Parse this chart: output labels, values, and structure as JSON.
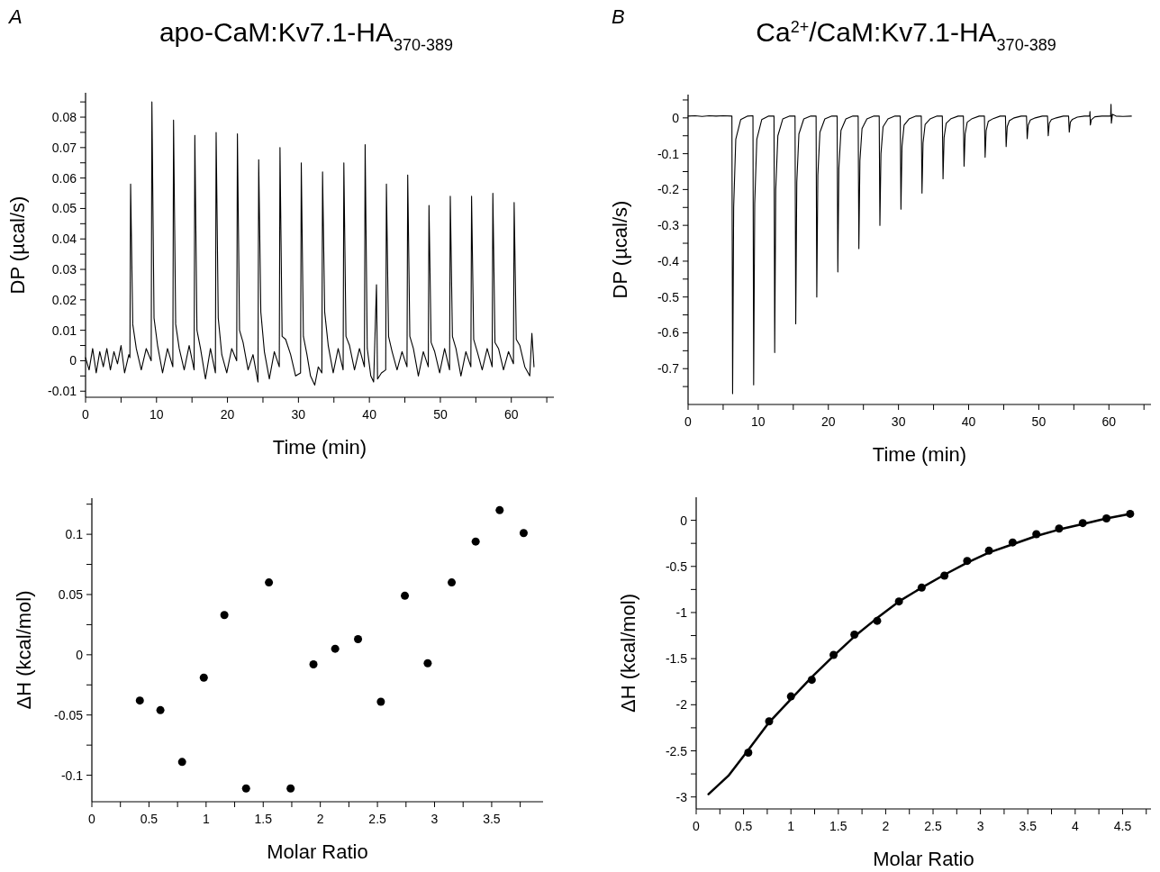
{
  "chart_data": [
    {
      "type": "line",
      "title": "apo-CaM:Kv7.1-HA$_{370-389}$",
      "annotations": [
        "A"
      ],
      "xlabel": "Time (min)",
      "ylabel": "DP (µcal/s)",
      "xlim": [
        0,
        66
      ],
      "ylim": [
        -0.012,
        0.088
      ],
      "xticks": [
        0,
        {
          "value": 5,
          "label": null
        },
        10,
        {
          "value": 15,
          "label": null
        },
        20,
        {
          "value": 25,
          "label": null
        },
        30,
        {
          "value": 35,
          "label": null
        },
        40,
        {
          "value": 45,
          "label": null
        },
        50,
        {
          "value": 55,
          "label": null
        },
        60,
        {
          "value": 65,
          "label": null
        }
      ],
      "yticks": [
        -0.01,
        {
          "value": -0.005,
          "label": null
        },
        0,
        {
          "value": 0.005,
          "label": null
        },
        0.01,
        {
          "value": 0.015,
          "label": null
        },
        0.02,
        {
          "value": 0.025,
          "label": null
        },
        0.03,
        {
          "value": 0.035,
          "label": null
        },
        0.04,
        {
          "value": 0.045,
          "label": null
        },
        0.05,
        {
          "value": 0.055,
          "label": null
        },
        0.06,
        {
          "value": 0.065,
          "label": null
        },
        0.07,
        {
          "value": 0.075,
          "label": null
        },
        0.08,
        {
          "value": 0.085,
          "label": null
        }
      ],
      "series": [
        {
          "color": "#000000",
          "x": [
            0,
            0.5,
            1,
            1.5,
            2,
            2.5,
            3,
            3.5,
            4,
            4.5,
            5,
            5.5,
            6.1,
            6.25,
            6.35,
            6.65,
            7.15,
            7.85,
            8.55,
            9.25,
            9.35,
            9.65,
            10.15,
            10.85,
            11.55,
            12.3,
            12.4,
            12.7,
            13.2,
            13.9,
            14.6,
            15.3,
            15.4,
            15.7,
            16.2,
            16.9,
            17.6,
            18.3,
            18.4,
            18.7,
            19.2,
            19.9,
            20.6,
            21.3,
            21.4,
            21.7,
            22.2,
            22.9,
            23.6,
            24.3,
            24.4,
            24.7,
            25.2,
            25.9,
            26.6,
            27.3,
            27.4,
            27.7,
            28.2,
            28.9,
            29.6,
            30.3,
            30.4,
            30.7,
            31.2,
            31.7,
            32.3,
            32.8,
            33.3,
            33.4,
            33.7,
            34.2,
            34.9,
            35.6,
            36.3,
            36.4,
            36.7,
            37.2,
            37.9,
            38.6,
            39.3,
            39.4,
            39.7,
            40.2,
            40.6,
            41.0,
            41.15,
            41.7,
            42.3,
            42.4,
            42.7,
            43.2,
            43.9,
            44.6,
            45.3,
            45.4,
            45.7,
            46.2,
            46.9,
            47.6,
            48.3,
            48.4,
            48.7,
            49.2,
            49.9,
            50.6,
            51.3,
            51.4,
            51.7,
            52.2,
            52.9,
            53.6,
            54.3,
            54.4,
            54.7,
            55.2,
            55.9,
            56.6,
            57.3,
            57.4,
            57.7,
            58.2,
            58.9,
            59.6,
            60.3,
            60.4,
            60.7,
            61.2,
            61.9,
            62.6,
            62.9,
            63.2
          ],
          "values": [
            0.001,
            -0.003,
            0.004,
            -0.004,
            0.003,
            -0.002,
            0.004,
            -0.003,
            0.003,
            -0.001,
            0.005,
            -0.004,
            0.002,
            0.001,
            0.058,
            0.012,
            0.004,
            -0.003,
            0.004,
            0.0,
            0.085,
            0.014,
            0.005,
            -0.004,
            0.004,
            -0.002,
            0.079,
            0.012,
            0.004,
            -0.003,
            0.005,
            -0.003,
            0.074,
            0.01,
            0.004,
            -0.006,
            0.004,
            -0.004,
            0.075,
            0.014,
            0.002,
            -0.004,
            0.004,
            0.0,
            0.0745,
            0.01,
            0.006,
            -0.003,
            0.002,
            -0.007,
            0.066,
            0.016,
            0.003,
            -0.006,
            0.003,
            -0.002,
            0.07,
            0.008,
            0.007,
            0.002,
            -0.005,
            -0.004,
            0.065,
            0.008,
            0.002,
            -0.005,
            -0.008,
            -0.002,
            -0.004,
            0.062,
            0.016,
            0.005,
            -0.004,
            0.004,
            -0.003,
            0.065,
            0.008,
            0.005,
            -0.003,
            0.004,
            -0.002,
            0.071,
            0.004,
            -0.005,
            -0.007,
            0.025,
            -0.006,
            -0.004,
            -0.003,
            0.058,
            0.008,
            0.003,
            -0.003,
            0.003,
            -0.002,
            0.061,
            0.008,
            0.004,
            -0.005,
            0.003,
            -0.002,
            0.051,
            0.006,
            0.003,
            -0.004,
            0.004,
            -0.003,
            0.054,
            0.008,
            0.004,
            -0.005,
            0.003,
            -0.002,
            0.054,
            0.007,
            0.003,
            -0.003,
            0.004,
            -0.002,
            0.055,
            0.006,
            0.004,
            -0.003,
            0.003,
            -0.001,
            0.052,
            0.007,
            0.005,
            -0.002,
            -0.005,
            0.009,
            -0.002
          ]
        }
      ]
    },
    {
      "type": "line",
      "title": "Ca$^{2+}$/CaM:Kv7.1-HA$_{370-389}$",
      "annotations": [
        "B"
      ],
      "xlabel": "Time (min)",
      "ylabel": "DP (µcal/s)",
      "xlim": [
        0,
        66
      ],
      "ylim": [
        -0.8,
        0.065
      ],
      "xticks": [
        0,
        {
          "value": 5,
          "label": null
        },
        10,
        {
          "value": 15,
          "label": null
        },
        20,
        {
          "value": 25,
          "label": null
        },
        30,
        {
          "value": 35,
          "label": null
        },
        40,
        {
          "value": 45,
          "label": null
        },
        50,
        {
          "value": 55,
          "label": null
        },
        60,
        {
          "value": 65,
          "label": null
        }
      ],
      "yticks": [
        {
          "value": 0.05,
          "label": null
        },
        0,
        {
          "value": -0.05,
          "label": null
        },
        -0.1,
        {
          "value": -0.15,
          "label": null
        },
        -0.2,
        {
          "value": -0.25,
          "label": null
        },
        -0.3,
        {
          "value": -0.35,
          "label": null
        },
        -0.4,
        {
          "value": -0.45,
          "label": null
        },
        -0.5,
        {
          "value": -0.55,
          "label": null
        },
        -0.6,
        {
          "value": -0.65,
          "label": null
        },
        -0.7,
        {
          "value": -0.75,
          "label": null
        }
      ],
      "series": [
        {
          "color": "#000000",
          "x": [
            0,
            1,
            2,
            3,
            4,
            5,
            6.25,
            6.35,
            6.5,
            6.8,
            7.5,
            8.5,
            9.25,
            9.35,
            9.5,
            9.8,
            10.5,
            11.5,
            12.25,
            12.35,
            12.5,
            12.8,
            13.5,
            14.5,
            15.25,
            15.35,
            15.5,
            15.8,
            16.5,
            17.5,
            18.25,
            18.35,
            18.5,
            18.8,
            19.5,
            20.5,
            21.25,
            21.35,
            21.5,
            21.8,
            22.5,
            23.5,
            24.25,
            24.35,
            24.5,
            24.8,
            25.5,
            26.5,
            27.25,
            27.35,
            27.5,
            27.8,
            28.5,
            29.5,
            30.25,
            30.35,
            30.5,
            30.8,
            31.5,
            32.5,
            33.25,
            33.35,
            33.5,
            33.8,
            34.5,
            35.5,
            36.25,
            36.35,
            36.5,
            36.8,
            37.5,
            38.5,
            39.25,
            39.35,
            39.5,
            39.8,
            40.5,
            41.5,
            42.25,
            42.35,
            42.5,
            42.8,
            43.5,
            44.5,
            45.25,
            45.35,
            45.5,
            45.8,
            46.5,
            47.5,
            48.25,
            48.35,
            48.5,
            48.8,
            49.5,
            50.5,
            51.25,
            51.35,
            51.5,
            51.8,
            52.5,
            53.5,
            54.25,
            54.35,
            54.5,
            54.8,
            55.5,
            56.5,
            57.25,
            57.3,
            57.35,
            57.5,
            58,
            59,
            60.25,
            60.3,
            60.35,
            60.5,
            61,
            62,
            63.2
          ],
          "values": [
            0.005,
            0.006,
            0.004,
            0.006,
            0.005,
            0.006,
            0.005,
            -0.77,
            -0.25,
            -0.06,
            -0.005,
            0.005,
            0.006,
            -0.745,
            -0.24,
            -0.06,
            -0.005,
            0.005,
            0.005,
            -0.655,
            -0.2,
            -0.05,
            -0.003,
            0.005,
            0.005,
            -0.575,
            -0.18,
            -0.045,
            -0.003,
            0.005,
            0.005,
            -0.5,
            -0.16,
            -0.04,
            -0.003,
            0.005,
            0.005,
            -0.43,
            -0.14,
            -0.035,
            -0.003,
            0.005,
            0.005,
            -0.365,
            -0.12,
            -0.03,
            -0.003,
            0.005,
            0.005,
            -0.3,
            -0.1,
            -0.025,
            -0.003,
            0.005,
            0.005,
            -0.255,
            -0.08,
            -0.02,
            -0.003,
            0.005,
            0.005,
            -0.21,
            -0.07,
            -0.018,
            -0.003,
            0.005,
            0.005,
            -0.17,
            -0.055,
            -0.015,
            -0.002,
            0.005,
            0.005,
            -0.135,
            -0.045,
            -0.012,
            -0.002,
            0.005,
            0.005,
            -0.11,
            -0.035,
            -0.01,
            -0.002,
            0.005,
            0.005,
            -0.08,
            -0.025,
            -0.008,
            0.0,
            0.005,
            0.005,
            -0.058,
            -0.02,
            -0.006,
            0.0,
            0.005,
            0.005,
            -0.05,
            -0.015,
            -0.005,
            0.0,
            0.005,
            0.005,
            -0.04,
            -0.012,
            -0.004,
            0.002,
            0.005,
            0.005,
            0.018,
            -0.02,
            -0.005,
            0.003,
            0.005,
            0.005,
            0.038,
            -0.015,
            0.01,
            0.005,
            0.004,
            0.005
          ]
        }
      ]
    },
    {
      "type": "scatter",
      "xlabel": "Molar Ratio",
      "ylabel": "ΔH (kcal/mol)",
      "xlim": [
        0,
        3.95
      ],
      "ylim": [
        -0.122,
        0.13
      ],
      "xticks": [
        0,
        {
          "value": 0.25,
          "label": null
        },
        0.5,
        {
          "value": 0.75,
          "label": null
        },
        1,
        {
          "value": 1.25,
          "label": null
        },
        1.5,
        {
          "value": 1.75,
          "label": null
        },
        2,
        {
          "value": 2.25,
          "label": null
        },
        2.5,
        {
          "value": 2.75,
          "label": null
        },
        3,
        {
          "value": 3.25,
          "label": null
        },
        3.5,
        {
          "value": 3.75,
          "label": null
        }
      ],
      "yticks": [
        -0.1,
        {
          "value": -0.075,
          "label": null
        },
        -0.05,
        {
          "value": -0.025,
          "label": null
        },
        0,
        {
          "value": 0.025,
          "label": null
        },
        0.05,
        {
          "value": 0.075,
          "label": null
        },
        0.1,
        {
          "value": 0.125,
          "label": null
        }
      ],
      "series": [
        {
          "color": "#000000",
          "marker": "circle",
          "x": [
            0.42,
            0.6,
            0.79,
            0.98,
            1.16,
            1.35,
            1.55,
            1.74,
            1.94,
            2.13,
            2.33,
            2.53,
            2.74,
            2.94,
            3.15,
            3.36,
            3.57,
            3.78
          ],
          "values": [
            -0.038,
            -0.046,
            -0.089,
            -0.019,
            0.033,
            -0.111,
            0.06,
            -0.111,
            -0.008,
            0.005,
            0.013,
            -0.039,
            0.049,
            -0.007,
            0.06,
            0.094,
            0.12,
            0.101
          ]
        }
      ]
    },
    {
      "type": "scatter",
      "xlabel": "Molar Ratio",
      "ylabel": "ΔH (kcal/mol)",
      "xlim": [
        0,
        4.8
      ],
      "ylim": [
        -3.13,
        0.25
      ],
      "xticks": [
        0,
        {
          "value": 0.25,
          "label": null
        },
        0.5,
        {
          "value": 0.75,
          "label": null
        },
        1,
        {
          "value": 1.25,
          "label": null
        },
        1.5,
        {
          "value": 1.75,
          "label": null
        },
        2,
        {
          "value": 2.25,
          "label": null
        },
        2.5,
        {
          "value": 2.75,
          "label": null
        },
        3,
        {
          "value": 3.25,
          "label": null
        },
        3.5,
        {
          "value": 3.75,
          "label": null
        },
        4,
        {
          "value": 4.25,
          "label": null
        },
        4.5,
        {
          "value": 4.75,
          "label": null
        }
      ],
      "yticks": [
        -3,
        {
          "value": -2.75,
          "label": null
        },
        -2.5,
        {
          "value": -2.25,
          "label": null
        },
        -2,
        {
          "value": -1.75,
          "label": null
        },
        -1.5,
        {
          "value": -1.25,
          "label": null
        },
        -1,
        {
          "value": -0.75,
          "label": null
        },
        -0.5,
        {
          "value": -0.25,
          "label": null
        },
        0
      ],
      "series": [
        {
          "color": "#000000",
          "marker": "circle",
          "x": [
            0.55,
            0.77,
            1.0,
            1.22,
            1.45,
            1.67,
            1.91,
            2.14,
            2.38,
            2.62,
            2.86,
            3.09,
            3.34,
            3.59,
            3.83,
            4.08,
            4.33,
            4.58
          ],
          "values": [
            -2.52,
            -2.18,
            -1.91,
            -1.73,
            -1.46,
            -1.24,
            -1.09,
            -0.88,
            -0.73,
            -0.6,
            -0.44,
            -0.33,
            -0.24,
            -0.15,
            -0.09,
            -0.03,
            0.02,
            0.07
          ]
        },
        {
          "type": "line",
          "color": "#000000",
          "x": [
            0.13,
            0.34,
            0.55,
            0.77,
            1.0,
            1.22,
            1.45,
            1.67,
            1.91,
            2.14,
            2.38,
            2.62,
            2.86,
            3.09,
            3.34,
            3.59,
            3.83,
            4.08,
            4.33,
            4.58
          ],
          "values": [
            -2.97,
            -2.77,
            -2.49,
            -2.19,
            -1.94,
            -1.7,
            -1.47,
            -1.26,
            -1.06,
            -0.88,
            -0.73,
            -0.59,
            -0.46,
            -0.35,
            -0.26,
            -0.17,
            -0.1,
            -0.04,
            0.02,
            0.07
          ]
        }
      ]
    }
  ]
}
